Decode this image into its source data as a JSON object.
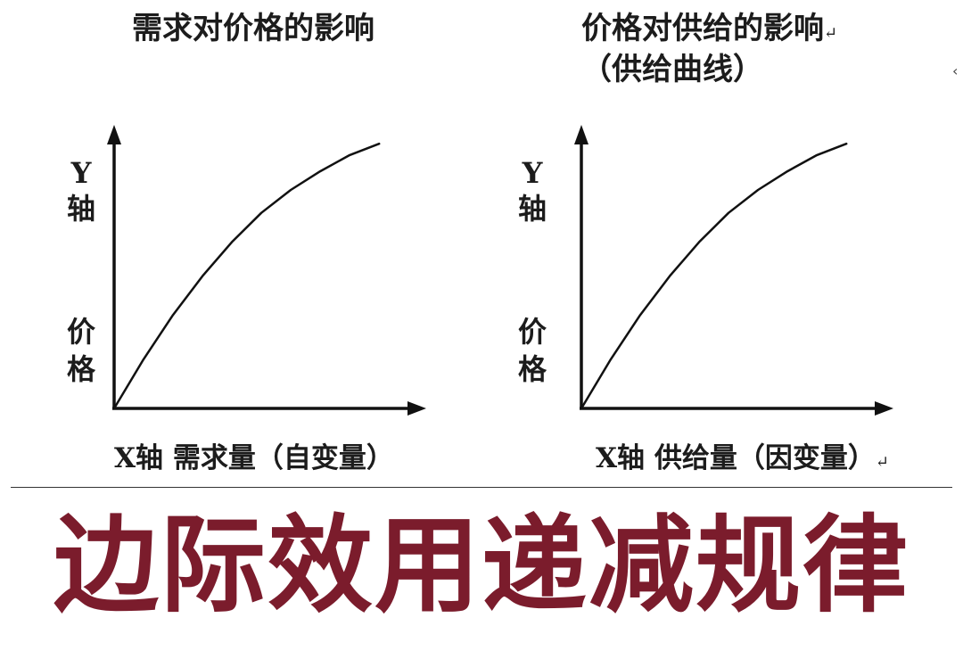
{
  "chart_data": [
    {
      "type": "line",
      "title": "需求对价格的影响",
      "ylabel": [
        "Y",
        "轴",
        "价",
        "格"
      ],
      "xlabel": "X轴 需求量（自变量）",
      "x": [
        0,
        1,
        2,
        3,
        4,
        5,
        6,
        7,
        8,
        9
      ],
      "series": [
        {
          "values": [
            0,
            1.82,
            3.46,
            4.9,
            6.16,
            7.24,
            8.09,
            8.78,
            9.38,
            9.8
          ]
        }
      ],
      "xlim": [
        0,
        10.6
      ],
      "ylim": [
        0,
        10.5
      ],
      "grid": false
    },
    {
      "type": "line",
      "title": "价格对供给的影响",
      "subtitle": "（供给曲线）",
      "ylabel": [
        "Y",
        "轴",
        "价",
        "格"
      ],
      "xlabel": "X轴 供给量（因变量）",
      "x": [
        0,
        1,
        2,
        3,
        4,
        5,
        6,
        7,
        8,
        9
      ],
      "series": [
        {
          "values": [
            0,
            1.82,
            3.46,
            4.9,
            6.16,
            7.24,
            8.09,
            8.78,
            9.38,
            9.8
          ]
        }
      ],
      "xlim": [
        0,
        10.6
      ],
      "ylim": [
        0,
        10.5
      ],
      "grid": false
    }
  ],
  "marks": {
    "return_glyph": "↵",
    "stray_glyph": "‹"
  },
  "headline": {
    "text": "边际效用递减规律",
    "color": "#7b1c2c"
  }
}
